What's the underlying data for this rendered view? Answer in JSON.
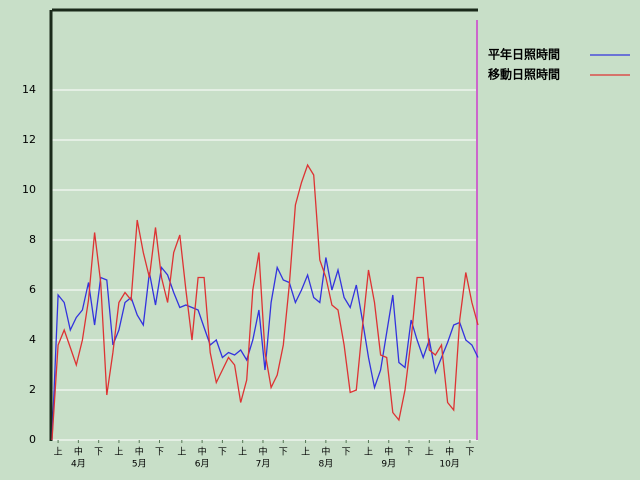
{
  "chart_data": {
    "type": "line",
    "x": [
      0,
      3,
      6,
      9,
      12,
      15,
      18,
      21,
      24,
      27,
      30,
      33,
      36,
      39,
      42,
      45,
      48,
      51,
      54,
      57,
      60,
      63,
      66,
      69,
      72,
      75,
      78,
      81,
      84,
      87,
      90,
      93,
      96,
      99,
      102,
      105,
      108,
      111,
      114,
      117,
      120,
      123,
      126,
      129,
      132,
      135,
      138,
      141,
      144,
      147,
      150,
      153,
      156,
      159,
      162,
      165,
      168,
      171,
      174,
      177,
      180,
      183,
      186,
      189,
      192,
      195,
      198,
      201,
      204,
      207,
      210
    ],
    "series": [
      {
        "name": "平年日照時間",
        "color": "#3333dd",
        "values": [
          0,
          5.8,
          5.5,
          4.4,
          4.9,
          5.2,
          6.3,
          4.6,
          6.5,
          6.4,
          3.8,
          4.4,
          5.5,
          5.7,
          5.0,
          4.6,
          6.7,
          5.4,
          6.9,
          6.6,
          5.9,
          5.3,
          5.4,
          5.3,
          5.2,
          4.5,
          3.8,
          4.0,
          3.3,
          3.5,
          3.4,
          3.6,
          3.2,
          4.0,
          5.2,
          2.8,
          5.5,
          6.9,
          6.4,
          6.3,
          5.5,
          6.0,
          6.6,
          5.7,
          5.5,
          7.3,
          6.0,
          6.8,
          5.7,
          5.3,
          6.2,
          4.8,
          3.3,
          2.1,
          2.8,
          4.3,
          5.8,
          3.1,
          2.9,
          4.8,
          4.0,
          3.3,
          4.0,
          2.7,
          3.3,
          3.9,
          4.6,
          4.7,
          4.0,
          3.8,
          3.3
        ]
      },
      {
        "name": "移動日照時間",
        "color": "#dd3333",
        "values": [
          0,
          3.8,
          4.4,
          3.7,
          3.0,
          4.0,
          5.6,
          8.3,
          6.3,
          1.8,
          3.5,
          5.5,
          5.9,
          5.6,
          8.8,
          7.5,
          6.5,
          8.5,
          6.5,
          5.5,
          7.5,
          8.2,
          6.0,
          4.0,
          6.5,
          6.5,
          3.5,
          2.3,
          2.8,
          3.3,
          3.0,
          1.5,
          2.4,
          6.0,
          7.5,
          3.5,
          2.1,
          2.6,
          3.8,
          6.2,
          9.4,
          10.3,
          11.0,
          10.6,
          7.2,
          6.5,
          5.4,
          5.2,
          3.8,
          1.9,
          2.0,
          4.5,
          6.8,
          5.5,
          3.4,
          3.3,
          1.1,
          0.8,
          2.0,
          4.0,
          6.5,
          6.5,
          3.6,
          3.4,
          3.8,
          1.5,
          1.2,
          4.8,
          6.7,
          5.5,
          4.6
        ]
      }
    ],
    "xlim": [
      0,
      210
    ],
    "xticks": [
      {
        "value": 3,
        "label": "上"
      },
      {
        "value": 13,
        "label": "中"
      },
      {
        "value": 23,
        "label": "下"
      },
      {
        "value": 33,
        "label": "上"
      },
      {
        "value": 43,
        "label": "中"
      },
      {
        "value": 53,
        "label": "下"
      },
      {
        "value": 64,
        "label": "上"
      },
      {
        "value": 74,
        "label": "中"
      },
      {
        "value": 84,
        "label": "下"
      },
      {
        "value": 94,
        "label": "上"
      },
      {
        "value": 104,
        "label": "中"
      },
      {
        "value": 114,
        "label": "下"
      },
      {
        "value": 125,
        "label": "上"
      },
      {
        "value": 135,
        "label": "中"
      },
      {
        "value": 145,
        "label": "下"
      },
      {
        "value": 156,
        "label": "上"
      },
      {
        "value": 166,
        "label": "中"
      },
      {
        "value": 176,
        "label": "下"
      },
      {
        "value": 186,
        "label": "上"
      },
      {
        "value": 196,
        "label": "中"
      },
      {
        "value": 206,
        "label": "下"
      }
    ],
    "month_labels": [
      {
        "value": 13,
        "label": "4月"
      },
      {
        "value": 43,
        "label": "5月"
      },
      {
        "value": 74,
        "label": "6月"
      },
      {
        "value": 104,
        "label": "7月"
      },
      {
        "value": 135,
        "label": "8月"
      },
      {
        "value": 166,
        "label": "9月"
      },
      {
        "value": 196,
        "label": "10月"
      }
    ],
    "ylim": [
      0,
      17.2
    ],
    "yticks": [
      0,
      2,
      4,
      6,
      8,
      10,
      12,
      14
    ],
    "grid": true,
    "legend": "right"
  }
}
